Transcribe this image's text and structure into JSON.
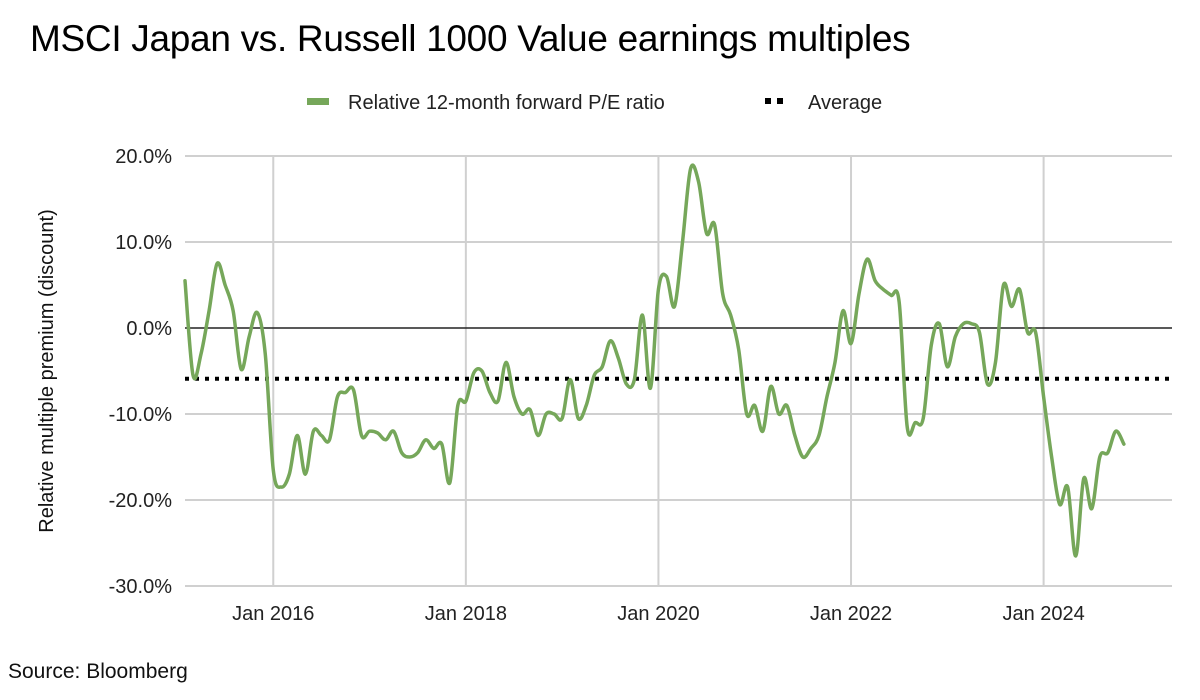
{
  "chart_data": {
    "type": "line",
    "title": "MSCI Japan vs. Russell 1000 Value earnings multiples",
    "xlabel": "",
    "ylabel": "Relative multiple premium (discount)",
    "source": "Source: Bloomberg",
    "ylim": [
      -30,
      20
    ],
    "yticks": [
      20,
      10,
      0,
      -10,
      -20,
      -30
    ],
    "ytick_labels": [
      "20.0%",
      "10.0%",
      "0.0%",
      "-10.0%",
      "-20.0%",
      "-30.0%"
    ],
    "xrange": [
      "2015-02",
      "2025-05"
    ],
    "xticks": [
      "2016-01",
      "2018-01",
      "2020-01",
      "2022-01",
      "2024-01"
    ],
    "xtick_labels": [
      "Jan 2016",
      "Jan 2018",
      "Jan 2020",
      "Jan 2022",
      "Jan 2024"
    ],
    "grid": true,
    "legend_position": "top-center",
    "legend": [
      {
        "name": "Relative 12-month forward P/E ratio",
        "style": "solid",
        "color": "#76a75a"
      },
      {
        "name": "Average",
        "style": "dotted",
        "color": "#000000"
      }
    ],
    "average": -5.9,
    "series": [
      {
        "name": "Relative 12-month forward P/E ratio",
        "color": "#76a75a",
        "start": "2015-02",
        "frequency": "monthly",
        "values": [
          5.5,
          -5.5,
          -3.0,
          2.0,
          7.5,
          5.0,
          2.0,
          -4.8,
          -1.0,
          1.8,
          -3.0,
          -16.5,
          -18.5,
          -17.0,
          -12.5,
          -17.0,
          -12.0,
          -12.5,
          -13.0,
          -8.0,
          -7.5,
          -7.2,
          -12.5,
          -12.0,
          -12.2,
          -13.0,
          -12.0,
          -14.5,
          -15.0,
          -14.5,
          -13.0,
          -14.0,
          -13.5,
          -18.0,
          -9.0,
          -8.5,
          -5.2,
          -5.0,
          -7.5,
          -8.5,
          -4.0,
          -8.0,
          -10.0,
          -9.5,
          -12.5,
          -10.0,
          -10.0,
          -10.5,
          -6.0,
          -10.5,
          -9.0,
          -5.5,
          -4.5,
          -1.5,
          -3.5,
          -6.5,
          -6.0,
          1.5,
          -7.0,
          4.5,
          6.0,
          2.5,
          10.0,
          18.5,
          17.0,
          11.0,
          12.0,
          4.0,
          1.5,
          -2.5,
          -10.0,
          -9.0,
          -12.0,
          -6.8,
          -10.0,
          -9.0,
          -12.5,
          -15.0,
          -14.0,
          -12.5,
          -8.0,
          -4.0,
          2.0,
          -1.8,
          4.0,
          8.0,
          5.5,
          4.5,
          3.8,
          3.0,
          -11.5,
          -11.0,
          -10.5,
          -2.0,
          0.5,
          -4.5,
          -1.0,
          0.5,
          0.5,
          -0.5,
          -6.5,
          -4.0,
          5.0,
          2.5,
          4.5,
          -0.5,
          -0.5,
          -8.0,
          -15.0,
          -20.5,
          -18.5,
          -26.5,
          -17.5,
          -21.0,
          -15.0,
          -14.5,
          -12.0,
          -13.5
        ]
      }
    ]
  }
}
